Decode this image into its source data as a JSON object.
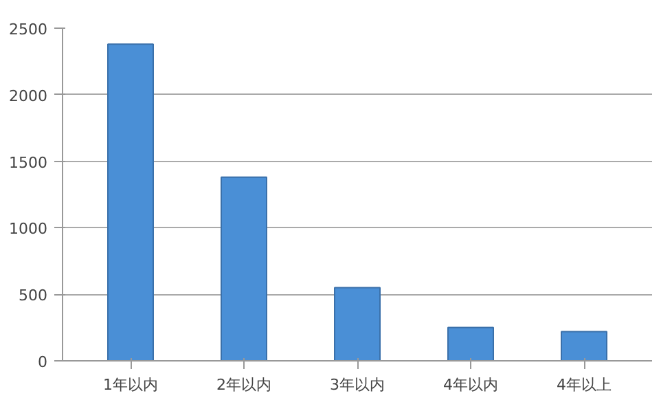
{
  "chart_data": {
    "type": "bar",
    "categories": [
      "1年以内",
      "2年以内",
      "3年以内",
      "4年以内",
      "4年以上"
    ],
    "values": [
      2380,
      1380,
      550,
      250,
      220
    ],
    "color": "#4a8fd6",
    "ylim": [
      0,
      2500
    ],
    "yticks": [
      0,
      500,
      1000,
      1500,
      2000,
      2500
    ],
    "grid": "y"
  }
}
